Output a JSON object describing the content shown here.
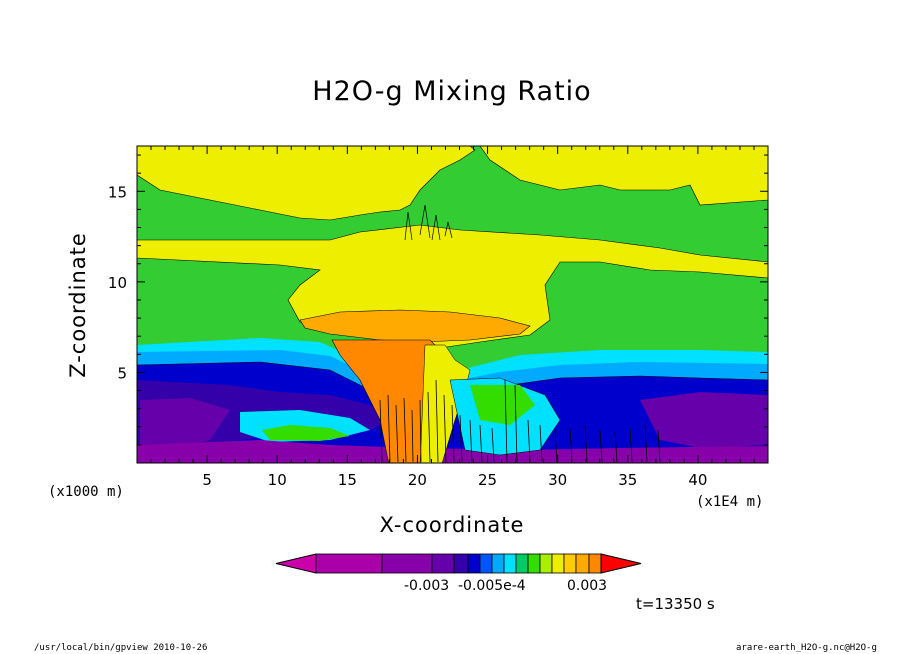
{
  "chart_data": {
    "type": "heatmap",
    "title": "H2O-g Mixing Ratio",
    "xlabel": "X-coordinate",
    "ylabel": "Z-coordinate",
    "x_unit": "(x1E4 m)",
    "y_unit": "(x1000 m)",
    "xlim": [
      0,
      45
    ],
    "ylim": [
      0,
      17.5
    ],
    "x_ticks": [
      "5",
      "10",
      "15",
      "20",
      "25",
      "30",
      "35",
      "40"
    ],
    "y_ticks": [
      "5",
      "10",
      "15"
    ],
    "colorbar": {
      "colors": [
        "#cc00aa",
        "#aa00aa",
        "#8800aa",
        "#6600aa",
        "#3300aa",
        "#0000cc",
        "#0055ff",
        "#00aaff",
        "#00e0ff",
        "#00cc66",
        "#33dd00",
        "#aaee00",
        "#eeee00",
        "#ffcc00",
        "#ffaa00",
        "#ff8800",
        "#ff0000"
      ],
      "tick_labels": [
        "-0.003",
        "-0.005e-4",
        "0.003"
      ]
    },
    "time_label": "t=13350 s",
    "grid": false
  },
  "footer": {
    "left": "/usr/local/bin/gpview  2010-10-26",
    "right": "arare-earth_H2O-g.nc@H2O-g"
  }
}
